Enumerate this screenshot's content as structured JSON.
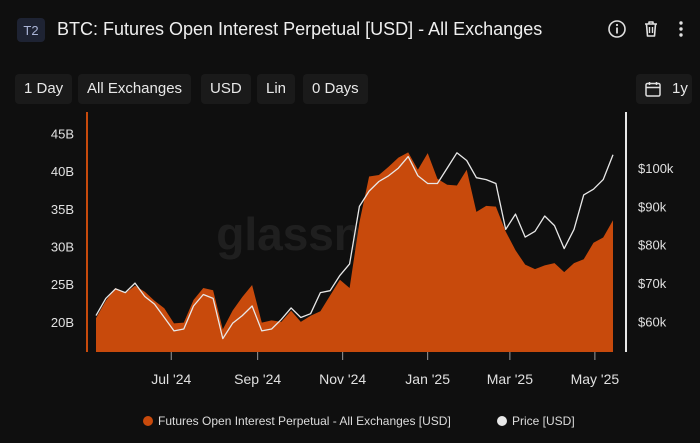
{
  "header": {
    "badge": "T2",
    "title": "BTC: Futures Open Interest Perpetual [USD] - All Exchanges",
    "icons": [
      "info-icon",
      "trash-icon",
      "more-vertical-icon"
    ]
  },
  "toolbar": {
    "resolution": "1 Day",
    "exchange": "All Exchanges",
    "currency": "USD",
    "scale": "Lin",
    "moving_average": "0 Days",
    "range": "1y",
    "range_icon": "calendar-icon"
  },
  "watermark": "glassnode",
  "colors": {
    "open_interest": "#c84a0c",
    "price": "#e8e8e8",
    "background": "#0f0f0f"
  },
  "chart_data": {
    "type": "area",
    "x": [
      "2024-05-08",
      "2024-05-15",
      "2024-05-22",
      "2024-05-29",
      "2024-06-05",
      "2024-06-12",
      "2024-06-19",
      "2024-06-26",
      "2024-07-03",
      "2024-07-10",
      "2024-07-17",
      "2024-07-24",
      "2024-07-31",
      "2024-08-07",
      "2024-08-14",
      "2024-08-21",
      "2024-08-28",
      "2024-09-04",
      "2024-09-11",
      "2024-09-18",
      "2024-09-25",
      "2024-10-02",
      "2024-10-09",
      "2024-10-16",
      "2024-10-23",
      "2024-10-30",
      "2024-11-06",
      "2024-11-13",
      "2024-11-20",
      "2024-11-27",
      "2024-12-04",
      "2024-12-11",
      "2024-12-18",
      "2024-12-25",
      "2025-01-01",
      "2025-01-08",
      "2025-01-15",
      "2025-01-22",
      "2025-01-29",
      "2025-02-05",
      "2025-02-12",
      "2025-02-19",
      "2025-02-26",
      "2025-03-05",
      "2025-03-12",
      "2025-03-19",
      "2025-03-26",
      "2025-04-02",
      "2025-04-09",
      "2025-04-16",
      "2025-04-23",
      "2025-04-30",
      "2025-05-07",
      "2025-05-14"
    ],
    "series": [
      {
        "name": "Futures Open Interest Perpetual - All Exchanges [USD]",
        "axis": "left",
        "values": [
          20.5,
          22.8,
          24.5,
          23.8,
          24.8,
          24.0,
          22.8,
          21.8,
          19.8,
          19.9,
          22.9,
          24.5,
          24.2,
          19.0,
          21.5,
          23.3,
          24.9,
          19.9,
          20.2,
          20.0,
          21.5,
          20.0,
          20.8,
          21.4,
          23.5,
          25.6,
          24.5,
          33.2,
          39.3,
          39.5,
          40.6,
          41.8,
          42.5,
          40.2,
          42.4,
          39.0,
          38.2,
          38.1,
          40.2,
          34.6,
          35.4,
          35.3,
          32.0,
          29.5,
          27.6,
          27.0,
          27.5,
          27.8,
          26.6,
          27.8,
          28.3,
          30.5,
          31.2,
          33.5
        ]
      },
      {
        "name": "Price [USD]",
        "axis": "right",
        "values": [
          61500,
          66000,
          68500,
          67500,
          70000,
          66500,
          64500,
          61000,
          57500,
          58000,
          64000,
          67000,
          66000,
          55500,
          59500,
          61500,
          64000,
          57500,
          58000,
          60500,
          63500,
          61000,
          62000,
          67500,
          68000,
          72000,
          75000,
          90000,
          94000,
          96500,
          98000,
          100000,
          103000,
          98000,
          96000,
          96000,
          100000,
          104000,
          102000,
          97500,
          97000,
          96000,
          84000,
          88000,
          82000,
          83500,
          87500,
          85000,
          79000,
          84000,
          93000,
          94500,
          97000,
          103500
        ]
      }
    ],
    "y_left": {
      "ticks": [
        "20B",
        "25B",
        "30B",
        "35B",
        "40B",
        "45B"
      ],
      "range": [
        16,
        46
      ]
    },
    "y_right": {
      "ticks": [
        "$60k",
        "$70k",
        "$80k",
        "$90k",
        "$100k"
      ],
      "range": [
        52000,
        111000
      ]
    },
    "x_ticks": [
      {
        "label": "Jul '24",
        "date": "2024-07-01"
      },
      {
        "label": "Sep '24",
        "date": "2024-09-01"
      },
      {
        "label": "Nov '24",
        "date": "2024-11-01"
      },
      {
        "label": "Jan '25",
        "date": "2025-01-01"
      },
      {
        "label": "Mar '25",
        "date": "2025-03-01"
      },
      {
        "label": "May '25",
        "date": "2025-05-01"
      }
    ],
    "grid": false,
    "legend_position": "bottom"
  }
}
